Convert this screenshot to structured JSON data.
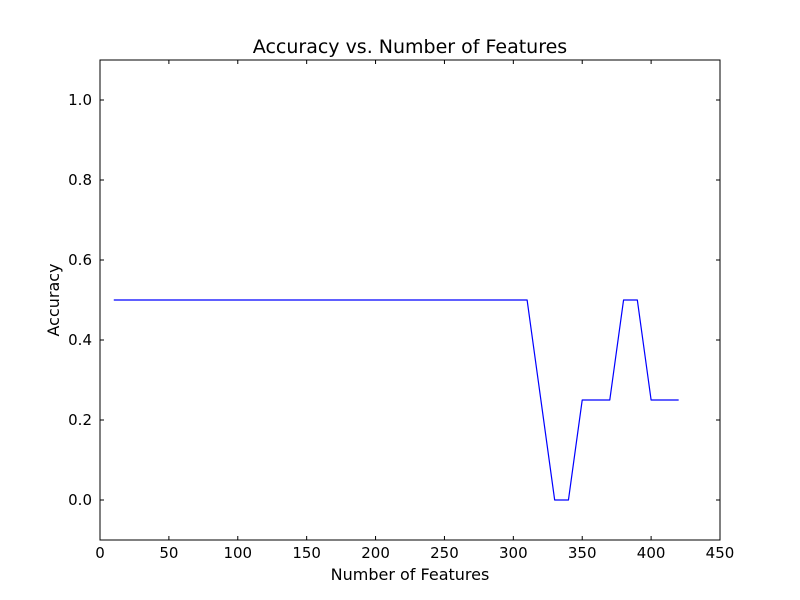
{
  "chart_data": {
    "type": "line",
    "title": "Accuracy vs. Number of Features",
    "xlabel": "Number of Features",
    "ylabel": "Accuracy",
    "xlim": [
      0,
      450
    ],
    "ylim": [
      -0.1,
      1.1
    ],
    "x_ticks": [
      0,
      50,
      100,
      150,
      200,
      250,
      300,
      350,
      400,
      450
    ],
    "x_tick_labels": [
      "0",
      "50",
      "100",
      "150",
      "200",
      "250",
      "300",
      "350",
      "400",
      "450"
    ],
    "y_ticks": [
      0.0,
      0.2,
      0.4,
      0.6,
      0.8,
      1.0
    ],
    "y_tick_labels": [
      "0.0",
      "0.2",
      "0.4",
      "0.6",
      "0.8",
      "1.0"
    ],
    "grid": false,
    "series": [
      {
        "color": "#0000ff",
        "x": [
          10,
          20,
          30,
          40,
          50,
          60,
          70,
          80,
          90,
          100,
          110,
          120,
          130,
          140,
          150,
          160,
          170,
          180,
          190,
          200,
          210,
          220,
          230,
          240,
          250,
          260,
          270,
          280,
          290,
          300,
          310,
          320,
          330,
          340,
          350,
          360,
          370,
          380,
          390,
          400,
          410,
          420
        ],
        "y": [
          0.5,
          0.5,
          0.5,
          0.5,
          0.5,
          0.5,
          0.5,
          0.5,
          0.5,
          0.5,
          0.5,
          0.5,
          0.5,
          0.5,
          0.5,
          0.5,
          0.5,
          0.5,
          0.5,
          0.5,
          0.5,
          0.5,
          0.5,
          0.5,
          0.5,
          0.5,
          0.5,
          0.5,
          0.5,
          0.5,
          0.5,
          0.25,
          0.0,
          0.0,
          0.25,
          0.25,
          0.25,
          0.5,
          0.5,
          0.25,
          0.25,
          0.25
        ]
      }
    ]
  }
}
